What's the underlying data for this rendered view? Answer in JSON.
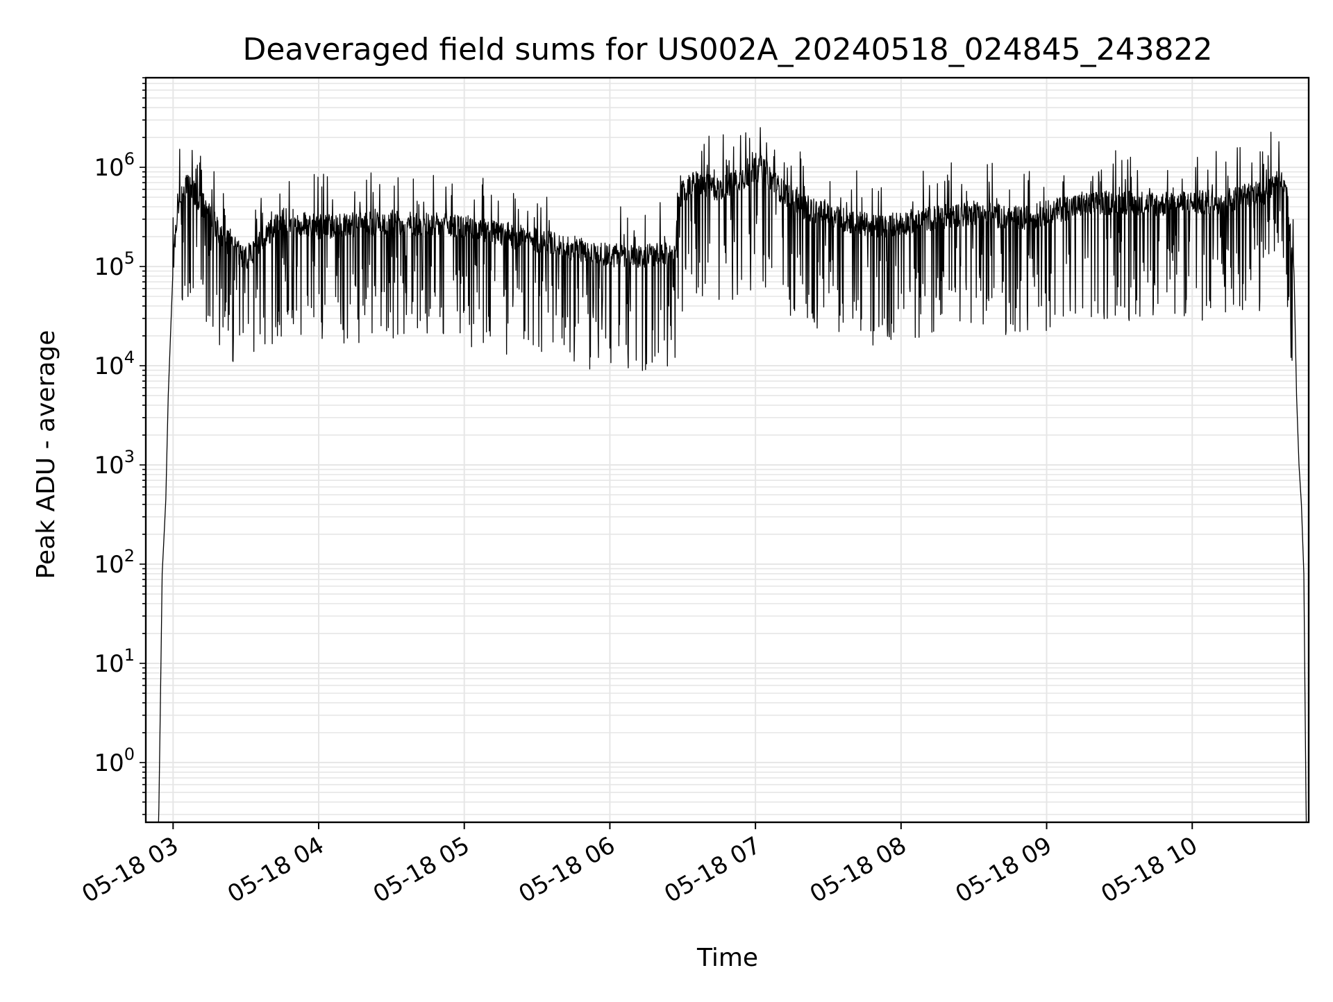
{
  "chart_data": {
    "type": "line",
    "title": "Deaveraged field sums for US002A_20240518_024845_243822",
    "xlabel": "Time",
    "ylabel": "Peak ADU - average",
    "yscale": "log",
    "ylim": [
      0.25,
      8000000
    ],
    "xlim": [
      "2024-05-18 02:48:45",
      "2024-05-18 10:48:00"
    ],
    "x_ticks": [
      {
        "value": "2024-05-18 03:00",
        "label": "05-18 03"
      },
      {
        "value": "2024-05-18 04:00",
        "label": "05-18 04"
      },
      {
        "value": "2024-05-18 05:00",
        "label": "05-18 05"
      },
      {
        "value": "2024-05-18 06:00",
        "label": "05-18 06"
      },
      {
        "value": "2024-05-18 07:00",
        "label": "05-18 07"
      },
      {
        "value": "2024-05-18 08:00",
        "label": "05-18 08"
      },
      {
        "value": "2024-05-18 09:00",
        "label": "05-18 09"
      },
      {
        "value": "2024-05-18 10:00",
        "label": "05-18 10"
      }
    ],
    "y_ticks": [
      {
        "value": 1,
        "base": "10",
        "exp": "0"
      },
      {
        "value": 10,
        "base": "10",
        "exp": "1"
      },
      {
        "value": 100,
        "base": "10",
        "exp": "2"
      },
      {
        "value": 1000,
        "base": "10",
        "exp": "3"
      },
      {
        "value": 10000,
        "base": "10",
        "exp": "4"
      },
      {
        "value": 100000,
        "base": "10",
        "exp": "5"
      },
      {
        "value": 1000000,
        "base": "10",
        "exp": "6"
      }
    ],
    "grid": true,
    "line_color": "#000000",
    "grid_color": "#e6e6e6",
    "series": [
      {
        "x": [
          "2024-05-18 02:54:00",
          "2024-05-18 02:55:00",
          "2024-05-18 02:55:30",
          "2024-05-18 02:56:30",
          "2024-05-18 02:57:00",
          "2024-05-18 02:58:00",
          "2024-05-18 03:00:00",
          "2024-05-18 03:02:00",
          "2024-05-18 03:04:00",
          "2024-05-18 03:06:00",
          "2024-05-18 03:09:00",
          "2024-05-18 03:12:00",
          "2024-05-18 03:15:00",
          "2024-05-18 03:20:00",
          "2024-05-18 03:30:00",
          "2024-05-18 03:45:00",
          "2024-05-18 04:00:00",
          "2024-05-18 04:30:00",
          "2024-05-18 05:00:00",
          "2024-05-18 05:30:00",
          "2024-05-18 06:00:00",
          "2024-05-18 06:27:00",
          "2024-05-18 06:28:00",
          "2024-05-18 06:35:00",
          "2024-05-18 06:45:00",
          "2024-05-18 06:55:00",
          "2024-05-18 07:03:00",
          "2024-05-18 07:10:00",
          "2024-05-18 07:20:00",
          "2024-05-18 07:35:00",
          "2024-05-18 07:50:00",
          "2024-05-18 08:10:00",
          "2024-05-18 08:30:00",
          "2024-05-18 08:50:00",
          "2024-05-18 09:10:00",
          "2024-05-18 09:30:00",
          "2024-05-18 09:50:00",
          "2024-05-18 10:10:00",
          "2024-05-18 10:30:00",
          "2024-05-18 10:36:00",
          "2024-05-18 10:39:00",
          "2024-05-18 10:42:00",
          "2024-05-18 10:43:00",
          "2024-05-18 10:44:00",
          "2024-05-18 10:45:00",
          "2024-05-18 10:46:00",
          "2024-05-18 10:47:00"
        ],
        "y": [
          0.2,
          10,
          80,
          250,
          450,
          5000,
          100000,
          400000,
          600000,
          650000,
          550000,
          420000,
          350000,
          200000,
          120000,
          300000,
          250000,
          280000,
          250000,
          180000,
          130000,
          130000,
          500000,
          700000,
          600000,
          800000,
          1000000,
          600000,
          400000,
          300000,
          250000,
          300000,
          350000,
          300000,
          400000,
          450000,
          420000,
          450000,
          550000,
          800000,
          500000,
          80000,
          5000,
          1000,
          400,
          80,
          0.2
        ]
      }
    ]
  }
}
